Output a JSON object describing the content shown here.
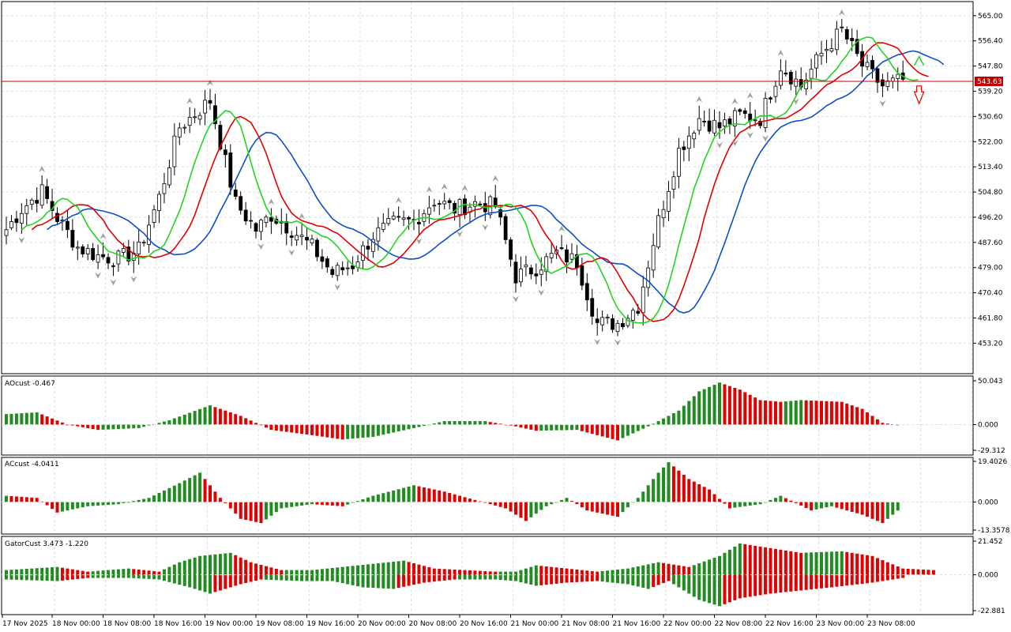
{
  "colors": {
    "background": "#ffffff",
    "grid": "#dddddd",
    "frame": "#000000",
    "bull_body": "#ffffff",
    "bear_body": "#000000",
    "jaw": "#0d4fc8",
    "teeth": "#e00000",
    "lips": "#22d422",
    "hist_up": "#228b22",
    "hist_down": "#e00000",
    "price_line": "#c00000",
    "fractal": "#a0a0a0"
  },
  "price_panel": {
    "current_price": "543.63",
    "ticks": [
      "565.00",
      "556.40",
      "547.80",
      "539.20",
      "530.60",
      "522.00",
      "513.40",
      "504.80",
      "496.20",
      "487.60",
      "479.00",
      "470.40",
      "461.80",
      "453.20"
    ],
    "ylim": [
      443.6,
      569.0
    ]
  },
  "ao_panel": {
    "label": "AOcust -0.467",
    "ticks": [
      "50.043",
      "0.000",
      "-29.312"
    ],
    "ylim": [
      -29.312,
      50.043
    ]
  },
  "ac_panel": {
    "label": "ACcust -4.0411",
    "ticks": [
      "19.4026",
      "0.000",
      "-13.3578"
    ],
    "ylim": [
      -13.3578,
      19.4026
    ]
  },
  "gator_panel": {
    "label": "GatorCust 3.473 -1.220",
    "ticks": [
      "21.452",
      "0.000",
      "-22.881"
    ],
    "ylim": [
      -22.881,
      21.452
    ]
  },
  "time_axis": [
    "17 Nov 2025",
    "18 Nov 00:00",
    "18 Nov 08:00",
    "18 Nov 16:00",
    "19 Nov 00:00",
    "19 Nov 08:00",
    "19 Nov 16:00",
    "20 Nov 00:00",
    "20 Nov 08:00",
    "20 Nov 16:00",
    "21 Nov 00:00",
    "21 Nov 08:00",
    "21 Nov 16:00",
    "22 Nov 00:00",
    "22 Nov 08:00",
    "22 Nov 16:00",
    "23 Nov 00:00",
    "23 Nov 08:00"
  ],
  "chart_data": {
    "type": "candlestick",
    "close_anchors": [
      [
        0,
        492
      ],
      [
        3,
        499
      ],
      [
        7,
        505
      ],
      [
        10,
        496
      ],
      [
        14,
        486
      ],
      [
        18,
        483
      ],
      [
        22,
        482
      ],
      [
        26,
        485
      ],
      [
        30,
        503
      ],
      [
        34,
        527
      ],
      [
        40,
        536
      ],
      [
        45,
        501
      ],
      [
        49,
        492
      ],
      [
        52,
        497
      ],
      [
        56,
        492
      ],
      [
        60,
        486
      ],
      [
        64,
        477
      ],
      [
        68,
        480
      ],
      [
        72,
        490
      ],
      [
        76,
        494
      ],
      [
        80,
        495
      ],
      [
        84,
        502
      ],
      [
        88,
        499
      ],
      [
        92,
        501
      ],
      [
        96,
        500
      ],
      [
        100,
        476
      ],
      [
        104,
        479
      ],
      [
        108,
        484
      ],
      [
        112,
        481
      ],
      [
        116,
        460
      ],
      [
        120,
        460
      ],
      [
        124,
        466
      ],
      [
        128,
        495
      ],
      [
        132,
        519
      ],
      [
        136,
        530
      ],
      [
        140,
        527
      ],
      [
        144,
        531
      ],
      [
        148,
        530
      ],
      [
        152,
        548
      ],
      [
        156,
        541
      ],
      [
        160,
        552
      ],
      [
        164,
        560
      ],
      [
        168,
        548
      ],
      [
        172,
        541
      ],
      [
        176,
        543
      ]
    ],
    "ao_anchors": [
      [
        0,
        12
      ],
      [
        6,
        14
      ],
      [
        12,
        0
      ],
      [
        18,
        -6
      ],
      [
        26,
        -4
      ],
      [
        32,
        5
      ],
      [
        40,
        22
      ],
      [
        46,
        10
      ],
      [
        52,
        -6
      ],
      [
        60,
        -12
      ],
      [
        66,
        -17
      ],
      [
        72,
        -14
      ],
      [
        80,
        -4
      ],
      [
        86,
        4
      ],
      [
        94,
        4
      ],
      [
        100,
        -2
      ],
      [
        104,
        -7
      ],
      [
        112,
        -6
      ],
      [
        120,
        -18
      ],
      [
        126,
        -2
      ],
      [
        132,
        16
      ],
      [
        136,
        38
      ],
      [
        140,
        48
      ],
      [
        144,
        40
      ],
      [
        148,
        28
      ],
      [
        152,
        26
      ],
      [
        156,
        28
      ],
      [
        164,
        26
      ],
      [
        168,
        18
      ],
      [
        172,
        2
      ],
      [
        175,
        -0.467
      ]
    ],
    "ac_anchors": [
      [
        0,
        3
      ],
      [
        6,
        2
      ],
      [
        10,
        -5
      ],
      [
        16,
        -2
      ],
      [
        22,
        -1
      ],
      [
        28,
        2
      ],
      [
        34,
        9
      ],
      [
        38,
        14
      ],
      [
        42,
        2
      ],
      [
        46,
        -8
      ],
      [
        50,
        -10
      ],
      [
        54,
        -3
      ],
      [
        60,
        -1
      ],
      [
        66,
        -2
      ],
      [
        72,
        3
      ],
      [
        80,
        8
      ],
      [
        86,
        5
      ],
      [
        92,
        1
      ],
      [
        98,
        -3
      ],
      [
        102,
        -9
      ],
      [
        106,
        -2
      ],
      [
        110,
        2
      ],
      [
        114,
        -4
      ],
      [
        120,
        -7
      ],
      [
        124,
        2
      ],
      [
        128,
        14
      ],
      [
        130,
        19
      ],
      [
        134,
        11
      ],
      [
        138,
        6
      ],
      [
        142,
        -3
      ],
      [
        148,
        -1
      ],
      [
        152,
        3
      ],
      [
        158,
        -4
      ],
      [
        162,
        -2
      ],
      [
        168,
        -6
      ],
      [
        172,
        -10
      ],
      [
        175,
        -4.04
      ]
    ],
    "gator_upper_anchors": [
      [
        0,
        3
      ],
      [
        10,
        5
      ],
      [
        16,
        2
      ],
      [
        24,
        4
      ],
      [
        30,
        2
      ],
      [
        34,
        8
      ],
      [
        38,
        12
      ],
      [
        44,
        14
      ],
      [
        48,
        8
      ],
      [
        54,
        3
      ],
      [
        60,
        3
      ],
      [
        66,
        5
      ],
      [
        72,
        7
      ],
      [
        78,
        9
      ],
      [
        84,
        4
      ],
      [
        90,
        3
      ],
      [
        96,
        2
      ],
      [
        100,
        2
      ],
      [
        104,
        6
      ],
      [
        110,
        4
      ],
      [
        116,
        2
      ],
      [
        122,
        4
      ],
      [
        128,
        8
      ],
      [
        134,
        5
      ],
      [
        140,
        12
      ],
      [
        144,
        20
      ],
      [
        148,
        18
      ],
      [
        156,
        14
      ],
      [
        164,
        15
      ],
      [
        170,
        12
      ],
      [
        176,
        4
      ],
      [
        182,
        3
      ]
    ],
    "gator_lower_anchors": [
      [
        0,
        -3
      ],
      [
        10,
        -4
      ],
      [
        16,
        -2
      ],
      [
        24,
        -2
      ],
      [
        30,
        -3
      ],
      [
        36,
        -8
      ],
      [
        40,
        -12
      ],
      [
        46,
        -6
      ],
      [
        50,
        -3
      ],
      [
        58,
        -4
      ],
      [
        64,
        -4
      ],
      [
        70,
        -8
      ],
      [
        76,
        -9
      ],
      [
        82,
        -5
      ],
      [
        88,
        -3
      ],
      [
        96,
        -3
      ],
      [
        100,
        -4
      ],
      [
        104,
        -7
      ],
      [
        110,
        -5
      ],
      [
        116,
        -4
      ],
      [
        122,
        -6
      ],
      [
        126,
        -9
      ],
      [
        130,
        -4
      ],
      [
        136,
        -16
      ],
      [
        140,
        -20
      ],
      [
        144,
        -15
      ],
      [
        150,
        -12
      ],
      [
        156,
        -10
      ],
      [
        162,
        -8
      ],
      [
        170,
        -5
      ],
      [
        176,
        -2
      ]
    ],
    "num_bars": 177
  }
}
